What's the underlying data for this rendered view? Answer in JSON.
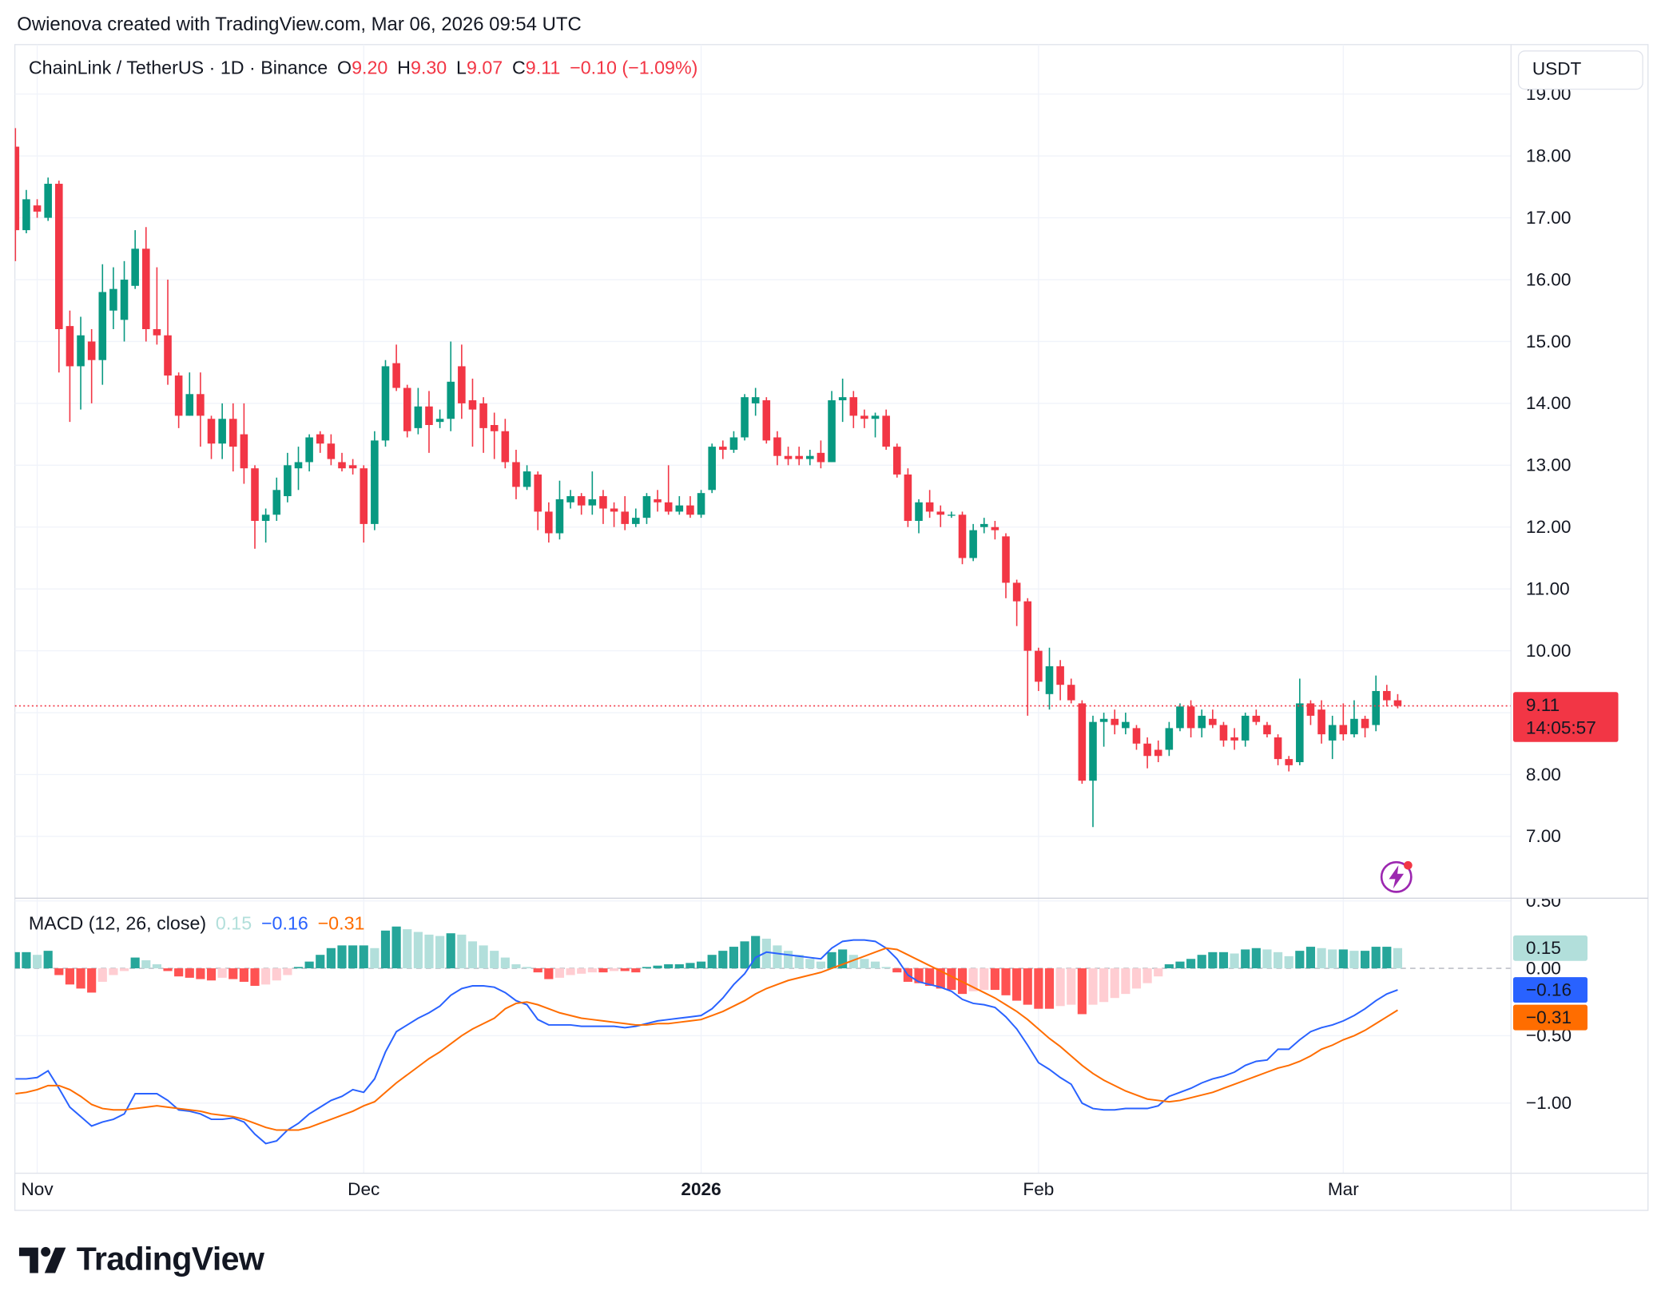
{
  "attribution": "Owienova created with TradingView.com, Mar 06, 2026 09:54 UTC",
  "logo": "TradingView",
  "chart_data": [
    {
      "type": "candlestick",
      "title": "ChainLink / TetherUS · 1D · Binance",
      "ohlc_legend": [
        [
          "O",
          "9.20"
        ],
        [
          "H",
          "9.30"
        ],
        [
          "L",
          "9.07"
        ],
        [
          "C",
          "9.11"
        ]
      ],
      "change": "−0.10 (−1.09%)",
      "currency": "USDT",
      "countdown": "14:05:57",
      "up_color": "#089981",
      "down_color": "#f23645",
      "grid": true,
      "categories": [
        null,
        null,
        "Nov",
        null,
        null,
        null,
        null,
        null,
        null,
        null,
        null,
        null,
        null,
        null,
        null,
        null,
        null,
        null,
        null,
        null,
        null,
        null,
        null,
        null,
        null,
        null,
        null,
        null,
        null,
        null,
        null,
        null,
        "Dec",
        null,
        null,
        null,
        null,
        null,
        null,
        null,
        null,
        null,
        null,
        null,
        null,
        null,
        null,
        null,
        null,
        null,
        null,
        null,
        null,
        null,
        null,
        null,
        null,
        null,
        null,
        null,
        null,
        null,
        null,
        "2026",
        null,
        null,
        null,
        null,
        null,
        null,
        null,
        null,
        null,
        null,
        null,
        null,
        null,
        null,
        null,
        null,
        null,
        null,
        null,
        null,
        null,
        null,
        null,
        null,
        null,
        null,
        null,
        null,
        null,
        null,
        "Feb",
        null,
        null,
        null,
        null,
        null,
        null,
        null,
        null,
        null,
        null,
        null,
        null,
        null,
        null,
        null,
        null,
        null,
        null,
        null,
        null,
        null,
        null,
        null,
        null,
        null,
        null,
        null,
        "Mar",
        null,
        null,
        null,
        null,
        null
      ],
      "open": [
        18.15,
        16.8,
        17.2,
        17.0,
        17.55,
        15.25,
        14.6,
        15.0,
        14.7,
        15.5,
        15.35,
        15.9,
        16.5,
        15.2,
        15.1,
        14.45,
        13.8,
        14.15,
        13.75,
        13.35,
        13.75,
        13.5,
        12.95,
        12.1,
        12.2,
        12.5,
        12.95,
        13.05,
        13.5,
        13.35,
        13.05,
        13.0,
        12.95,
        12.05,
        13.4,
        14.65,
        14.25,
        13.6,
        13.95,
        13.7,
        13.75,
        14.6,
        14.05,
        14.0,
        13.65,
        13.55,
        13.05,
        12.65,
        12.85,
        12.25,
        11.9,
        12.4,
        12.5,
        12.35,
        12.5,
        12.3,
        12.25,
        12.05,
        12.15,
        12.45,
        12.4,
        12.25,
        12.35,
        12.2,
        12.6,
        13.3,
        13.25,
        13.45,
        14.0,
        14.05,
        13.45,
        13.15,
        13.15,
        13.1,
        13.2,
        13.05,
        14.05,
        14.1,
        13.8,
        13.75,
        13.8,
        13.3,
        12.85,
        12.1,
        12.4,
        12.25,
        12.2,
        12.2,
        11.5,
        12.0,
        12.0,
        11.85,
        11.1,
        10.8,
        10.0,
        9.3,
        9.75,
        9.45,
        9.15,
        7.9,
        8.85,
        8.9,
        8.75,
        8.75,
        8.5,
        8.4,
        8.4,
        8.75,
        9.1,
        8.75,
        8.9,
        8.8,
        8.6,
        8.55,
        8.95,
        8.8,
        8.6,
        8.25,
        8.2,
        9.15,
        9.05,
        8.55,
        8.8,
        8.65,
        8.9,
        8.8,
        9.35,
        9.2
      ],
      "high": [
        18.45,
        17.45,
        17.3,
        17.65,
        17.6,
        15.5,
        15.4,
        15.2,
        16.25,
        16.2,
        16.3,
        16.8,
        16.85,
        16.2,
        16.0,
        14.5,
        14.5,
        14.5,
        13.8,
        14.0,
        14.0,
        14.0,
        13.0,
        12.3,
        12.8,
        13.2,
        13.3,
        13.5,
        13.55,
        13.5,
        13.2,
        13.1,
        13.0,
        13.55,
        14.7,
        14.95,
        14.3,
        14.25,
        14.2,
        13.9,
        15.0,
        14.95,
        14.4,
        14.1,
        13.85,
        13.75,
        13.25,
        13.0,
        12.9,
        12.4,
        12.75,
        12.6,
        12.55,
        12.9,
        12.6,
        12.4,
        12.5,
        12.3,
        12.55,
        12.6,
        13.0,
        12.5,
        12.5,
        12.6,
        13.35,
        13.4,
        13.55,
        14.15,
        14.25,
        14.1,
        13.55,
        13.3,
        13.3,
        13.25,
        13.4,
        14.2,
        14.4,
        14.2,
        13.9,
        13.85,
        13.9,
        13.35,
        12.95,
        12.45,
        12.6,
        12.35,
        12.25,
        12.25,
        12.05,
        12.15,
        12.1,
        11.9,
        11.15,
        10.85,
        10.05,
        10.05,
        9.85,
        9.55,
        9.2,
        8.95,
        9.0,
        9.05,
        9.0,
        8.8,
        8.6,
        8.55,
        8.85,
        9.15,
        9.2,
        9.05,
        9.05,
        8.85,
        8.75,
        9.0,
        9.05,
        8.85,
        8.65,
        8.3,
        9.55,
        9.2,
        9.2,
        8.95,
        9.15,
        9.2,
        8.95,
        9.6,
        9.45,
        9.3
      ],
      "low": [
        16.3,
        16.75,
        17.0,
        16.95,
        14.5,
        13.7,
        13.9,
        14.0,
        14.3,
        15.2,
        15.0,
        15.85,
        15.0,
        14.95,
        14.3,
        13.6,
        13.8,
        13.3,
        13.1,
        13.1,
        12.9,
        12.7,
        11.65,
        11.75,
        12.1,
        12.4,
        12.6,
        12.9,
        13.2,
        13.0,
        12.9,
        12.85,
        11.75,
        11.95,
        13.3,
        14.2,
        13.45,
        13.5,
        13.2,
        13.6,
        13.55,
        13.75,
        13.3,
        13.2,
        13.1,
        12.95,
        12.45,
        12.6,
        11.95,
        11.75,
        11.8,
        12.3,
        12.2,
        12.2,
        12.05,
        12.0,
        11.95,
        12.0,
        12.05,
        12.25,
        12.2,
        12.2,
        12.15,
        12.15,
        12.55,
        13.1,
        13.2,
        13.4,
        13.8,
        13.35,
        13.0,
        13.0,
        13.0,
        13.0,
        12.95,
        13.05,
        13.7,
        13.6,
        13.6,
        13.45,
        13.25,
        12.8,
        12.0,
        11.9,
        12.15,
        12.0,
        12.15,
        11.4,
        11.45,
        11.9,
        11.8,
        10.85,
        10.4,
        8.95,
        9.35,
        9.05,
        9.2,
        9.15,
        7.85,
        7.15,
        8.45,
        8.65,
        8.65,
        8.4,
        8.1,
        8.2,
        8.3,
        8.7,
        8.6,
        8.6,
        8.75,
        8.45,
        8.4,
        8.45,
        8.8,
        8.6,
        8.15,
        8.05,
        8.15,
        8.8,
        8.5,
        8.25,
        8.55,
        8.6,
        8.6,
        8.7,
        9.1,
        9.07
      ],
      "close": [
        16.8,
        17.3,
        17.1,
        17.55,
        15.2,
        14.6,
        15.1,
        14.7,
        15.8,
        15.85,
        16.0,
        16.5,
        15.2,
        15.1,
        14.45,
        13.8,
        14.15,
        13.8,
        13.35,
        13.75,
        13.3,
        12.95,
        12.1,
        12.2,
        12.6,
        13.0,
        13.05,
        13.45,
        13.35,
        13.1,
        12.95,
        12.95,
        12.05,
        13.4,
        14.6,
        14.25,
        13.55,
        13.95,
        13.65,
        13.75,
        14.35,
        14.0,
        13.9,
        13.6,
        13.55,
        13.05,
        12.65,
        12.9,
        12.25,
        11.9,
        12.45,
        12.5,
        12.35,
        12.45,
        12.3,
        12.25,
        12.05,
        12.15,
        12.5,
        12.4,
        12.25,
        12.35,
        12.2,
        12.55,
        13.3,
        13.25,
        13.45,
        14.1,
        14.1,
        13.4,
        13.15,
        13.1,
        13.1,
        13.15,
        13.05,
        14.05,
        14.1,
        13.8,
        13.75,
        13.8,
        13.3,
        12.85,
        12.1,
        12.4,
        12.25,
        12.2,
        12.2,
        11.5,
        11.95,
        12.05,
        11.95,
        11.1,
        10.8,
        10.0,
        9.5,
        9.75,
        9.45,
        9.2,
        7.9,
        8.85,
        8.9,
        8.8,
        8.85,
        8.5,
        8.3,
        8.3,
        8.75,
        9.1,
        8.75,
        8.95,
        8.8,
        8.55,
        8.55,
        8.95,
        8.85,
        8.65,
        8.25,
        8.15,
        9.15,
        8.95,
        8.65,
        8.8,
        8.65,
        8.9,
        8.75,
        9.35,
        9.2,
        9.11
      ],
      "ylim": [
        6.0,
        19.8
      ],
      "yticks": [
        {
          "value": 7,
          "label": "7.00"
        },
        {
          "value": 8,
          "label": "8.00"
        },
        {
          "value": 9,
          "label": "9.00"
        },
        {
          "value": 10,
          "label": "10.00"
        },
        {
          "value": 11,
          "label": "11.00"
        },
        {
          "value": 12,
          "label": "12.00"
        },
        {
          "value": 13,
          "label": "13.00"
        },
        {
          "value": 14,
          "label": "14.00"
        },
        {
          "value": 15,
          "label": "15.00"
        },
        {
          "value": 16,
          "label": "16.00"
        },
        {
          "value": 17,
          "label": "17.00"
        },
        {
          "value": 18,
          "label": "18.00"
        },
        {
          "value": 19,
          "label": "19.00"
        }
      ]
    },
    {
      "type": "macd",
      "title": "MACD (12, 26, close)",
      "grid": true,
      "histogram": {
        "value_label": "0.15",
        "colors": {
          "rising_above": "#26a69a",
          "falling_above": "#b2dfdb",
          "falling_below": "#ff5252",
          "rising_below": "#ffcdd2"
        },
        "values": [
          0.12,
          0.12,
          0.1,
          0.13,
          -0.05,
          -0.12,
          -0.15,
          -0.18,
          -0.1,
          -0.05,
          -0.02,
          0.08,
          0.06,
          0.03,
          -0.02,
          -0.06,
          -0.07,
          -0.08,
          -0.09,
          -0.07,
          -0.08,
          -0.1,
          -0.13,
          -0.12,
          -0.09,
          -0.05,
          0.01,
          0.05,
          0.1,
          0.15,
          0.17,
          0.17,
          0.17,
          0.15,
          0.28,
          0.31,
          0.29,
          0.27,
          0.25,
          0.24,
          0.26,
          0.25,
          0.2,
          0.17,
          0.13,
          0.08,
          0.03,
          0.01,
          -0.03,
          -0.08,
          -0.07,
          -0.05,
          -0.04,
          -0.03,
          -0.03,
          -0.02,
          -0.02,
          -0.03,
          0.01,
          0.02,
          0.03,
          0.03,
          0.04,
          0.05,
          0.1,
          0.13,
          0.16,
          0.2,
          0.24,
          0.22,
          0.17,
          0.13,
          0.1,
          0.07,
          0.05,
          0.12,
          0.14,
          0.1,
          0.07,
          0.05,
          0.01,
          -0.03,
          -0.1,
          -0.11,
          -0.13,
          -0.15,
          -0.16,
          -0.19,
          -0.17,
          -0.16,
          -0.16,
          -0.2,
          -0.24,
          -0.27,
          -0.3,
          -0.3,
          -0.28,
          -0.27,
          -0.34,
          -0.27,
          -0.25,
          -0.22,
          -0.19,
          -0.15,
          -0.11,
          -0.06,
          0.03,
          0.05,
          0.07,
          0.1,
          0.12,
          0.12,
          0.11,
          0.14,
          0.15,
          0.14,
          0.12,
          0.09,
          0.13,
          0.16,
          0.15,
          0.14,
          0.14,
          0.13,
          0.13,
          0.16,
          0.16,
          0.15
        ]
      },
      "series": [
        {
          "color": "#2962ff",
          "value_label": "−0.16",
          "values": [
            -0.82,
            -0.82,
            -0.81,
            -0.76,
            -0.89,
            -1.03,
            -1.1,
            -1.17,
            -1.14,
            -1.12,
            -1.08,
            -0.93,
            -0.93,
            -0.93,
            -0.98,
            -1.05,
            -1.06,
            -1.08,
            -1.12,
            -1.12,
            -1.11,
            -1.14,
            -1.23,
            -1.3,
            -1.28,
            -1.2,
            -1.15,
            -1.08,
            -1.03,
            -0.98,
            -0.95,
            -0.9,
            -0.92,
            -0.82,
            -0.62,
            -0.47,
            -0.42,
            -0.37,
            -0.33,
            -0.28,
            -0.2,
            -0.15,
            -0.13,
            -0.13,
            -0.14,
            -0.18,
            -0.24,
            -0.27,
            -0.38,
            -0.42,
            -0.42,
            -0.42,
            -0.43,
            -0.43,
            -0.43,
            -0.43,
            -0.44,
            -0.43,
            -0.41,
            -0.39,
            -0.38,
            -0.37,
            -0.36,
            -0.35,
            -0.3,
            -0.22,
            -0.12,
            -0.04,
            0.08,
            0.12,
            0.11,
            0.1,
            0.09,
            0.08,
            0.07,
            0.15,
            0.2,
            0.21,
            0.21,
            0.2,
            0.15,
            0.07,
            -0.05,
            -0.1,
            -0.12,
            -0.14,
            -0.17,
            -0.23,
            -0.26,
            -0.27,
            -0.29,
            -0.36,
            -0.45,
            -0.57,
            -0.7,
            -0.75,
            -0.81,
            -0.86,
            -1.0,
            -1.04,
            -1.05,
            -1.05,
            -1.04,
            -1.04,
            -1.04,
            -1.02,
            -0.95,
            -0.92,
            -0.89,
            -0.85,
            -0.82,
            -0.8,
            -0.77,
            -0.72,
            -0.69,
            -0.68,
            -0.6,
            -0.6,
            -0.53,
            -0.47,
            -0.44,
            -0.42,
            -0.39,
            -0.35,
            -0.3,
            -0.24,
            -0.19,
            -0.16
          ]
        },
        {
          "color": "#ff6d00",
          "value_label": "−0.31",
          "values": [
            -0.93,
            -0.92,
            -0.9,
            -0.87,
            -0.87,
            -0.9,
            -0.95,
            -1.01,
            -1.04,
            -1.05,
            -1.05,
            -1.04,
            -1.03,
            -1.02,
            -1.03,
            -1.04,
            -1.05,
            -1.06,
            -1.08,
            -1.09,
            -1.1,
            -1.12,
            -1.15,
            -1.18,
            -1.2,
            -1.2,
            -1.2,
            -1.18,
            -1.15,
            -1.12,
            -1.09,
            -1.06,
            -1.02,
            -0.99,
            -0.92,
            -0.85,
            -0.79,
            -0.73,
            -0.67,
            -0.62,
            -0.56,
            -0.5,
            -0.45,
            -0.41,
            -0.37,
            -0.3,
            -0.26,
            -0.25,
            -0.27,
            -0.3,
            -0.33,
            -0.35,
            -0.37,
            -0.38,
            -0.39,
            -0.4,
            -0.41,
            -0.42,
            -0.42,
            -0.41,
            -0.41,
            -0.4,
            -0.39,
            -0.38,
            -0.35,
            -0.32,
            -0.28,
            -0.24,
            -0.19,
            -0.15,
            -0.12,
            -0.09,
            -0.07,
            -0.05,
            -0.03,
            0.0,
            0.03,
            0.06,
            0.09,
            0.12,
            0.15,
            0.14,
            0.1,
            0.06,
            0.02,
            -0.02,
            -0.06,
            -0.1,
            -0.14,
            -0.18,
            -0.22,
            -0.27,
            -0.32,
            -0.38,
            -0.45,
            -0.52,
            -0.58,
            -0.65,
            -0.72,
            -0.78,
            -0.83,
            -0.87,
            -0.91,
            -0.94,
            -0.97,
            -0.98,
            -0.99,
            -0.98,
            -0.96,
            -0.94,
            -0.92,
            -0.89,
            -0.86,
            -0.83,
            -0.8,
            -0.77,
            -0.74,
            -0.72,
            -0.69,
            -0.65,
            -0.6,
            -0.57,
            -0.53,
            -0.5,
            -0.46,
            -0.41,
            -0.36,
            -0.31
          ]
        }
      ],
      "ylim": [
        -1.52,
        0.52
      ],
      "yticks": [
        {
          "value": 0.5,
          "label": "0.50"
        },
        {
          "value": 0,
          "label": "0.00"
        },
        {
          "value": -0.5,
          "label": "−0.50"
        },
        {
          "value": -1,
          "label": "−1.00"
        }
      ]
    }
  ]
}
